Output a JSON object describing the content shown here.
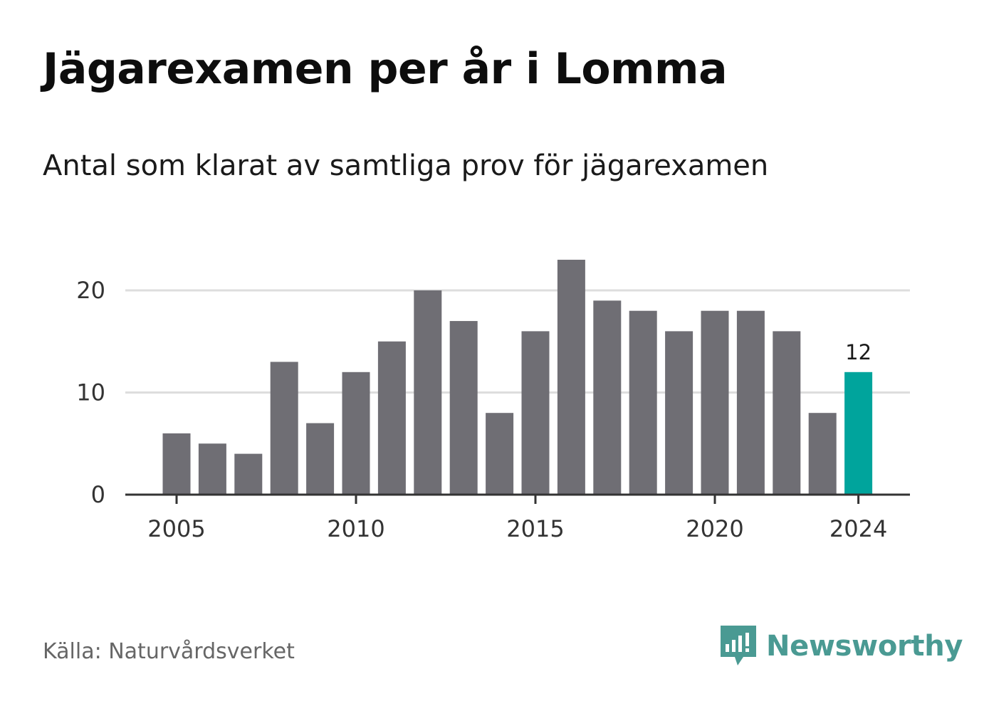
{
  "header": {
    "title": "Jägarexamen per år i Lomma",
    "subtitle": "Antal som klarat av samtliga prov för jägarexamen"
  },
  "footer": {
    "source": "Källa: Naturvårdsverket",
    "brand_name": "Newsworthy",
    "brand_icon": "newsworthy-logo-icon"
  },
  "colors": {
    "bar": "#6f6e74",
    "highlight": "#00a49c",
    "grid": "#dddddd",
    "axis": "#333333",
    "brand": "#4a9a93"
  },
  "chart_data": {
    "type": "bar",
    "categories": [
      2005,
      2006,
      2007,
      2008,
      2009,
      2010,
      2011,
      2012,
      2013,
      2014,
      2015,
      2016,
      2017,
      2018,
      2019,
      2020,
      2021,
      2022,
      2023,
      2024
    ],
    "values": [
      6,
      5,
      4,
      13,
      7,
      12,
      15,
      20,
      17,
      8,
      16,
      23,
      19,
      18,
      16,
      18,
      18,
      16,
      8,
      12
    ],
    "highlight_category": 2024,
    "data_labels": [
      {
        "category": 2024,
        "text": "12"
      }
    ],
    "x_ticks": [
      "2005",
      "2010",
      "2015",
      "2020",
      "2024"
    ],
    "y_ticks": [
      "0",
      "10",
      "20"
    ],
    "ylim": [
      0,
      24
    ],
    "grid": true,
    "xlabel": "",
    "ylabel": ""
  }
}
